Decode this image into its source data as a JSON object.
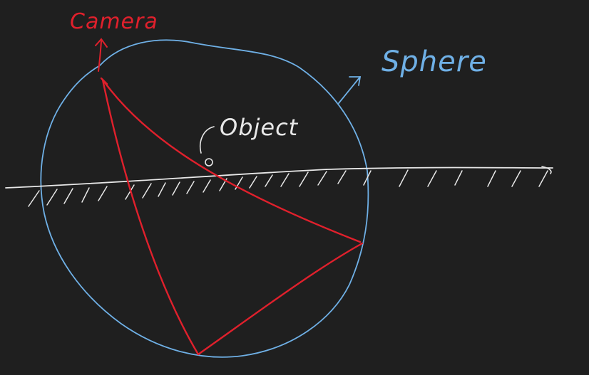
{
  "labels": {
    "camera": "Camera",
    "sphere": "Sphere",
    "object": "Object"
  },
  "colors": {
    "background": "#1f1f1f",
    "camera": "#e0202c",
    "sphere": "#6fb0e6",
    "ground": "#e8e8e8",
    "object": "#e8e8e8"
  }
}
